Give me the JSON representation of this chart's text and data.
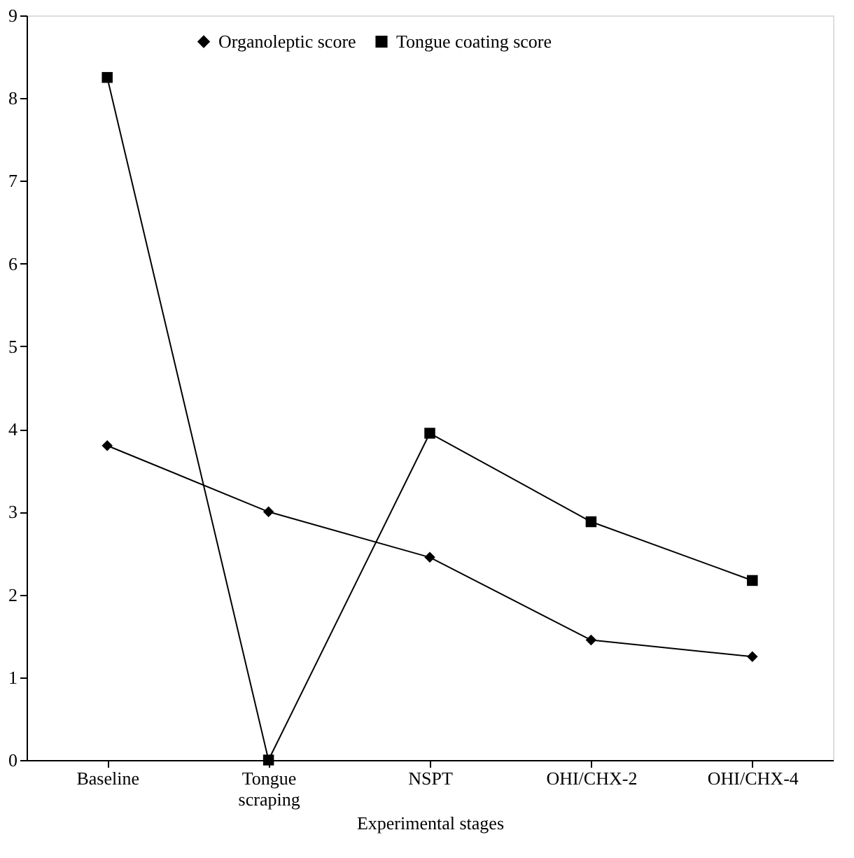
{
  "chart_data": {
    "type": "line",
    "xlabel": "Experimental stages",
    "categories": [
      "Baseline",
      "Tongue scraping",
      "NSPT",
      "OHI/CHX-2",
      "OHI/CHX-4"
    ],
    "series": [
      {
        "name": "Organoleptic score",
        "color": "#000000",
        "marker": "diamond",
        "values": [
          3.8,
          3.0,
          2.45,
          1.45,
          1.25
        ]
      },
      {
        "name": "Tongue coating score",
        "color": "#000000",
        "marker": "square",
        "values": [
          8.25,
          0,
          3.95,
          2.88,
          2.17
        ]
      }
    ],
    "ylim": [
      0,
      9
    ],
    "yticks": [
      0,
      1,
      2,
      3,
      4,
      5,
      6,
      7,
      8,
      9
    ],
    "grid": false,
    "legend": "top",
    "line_style": "solid"
  }
}
